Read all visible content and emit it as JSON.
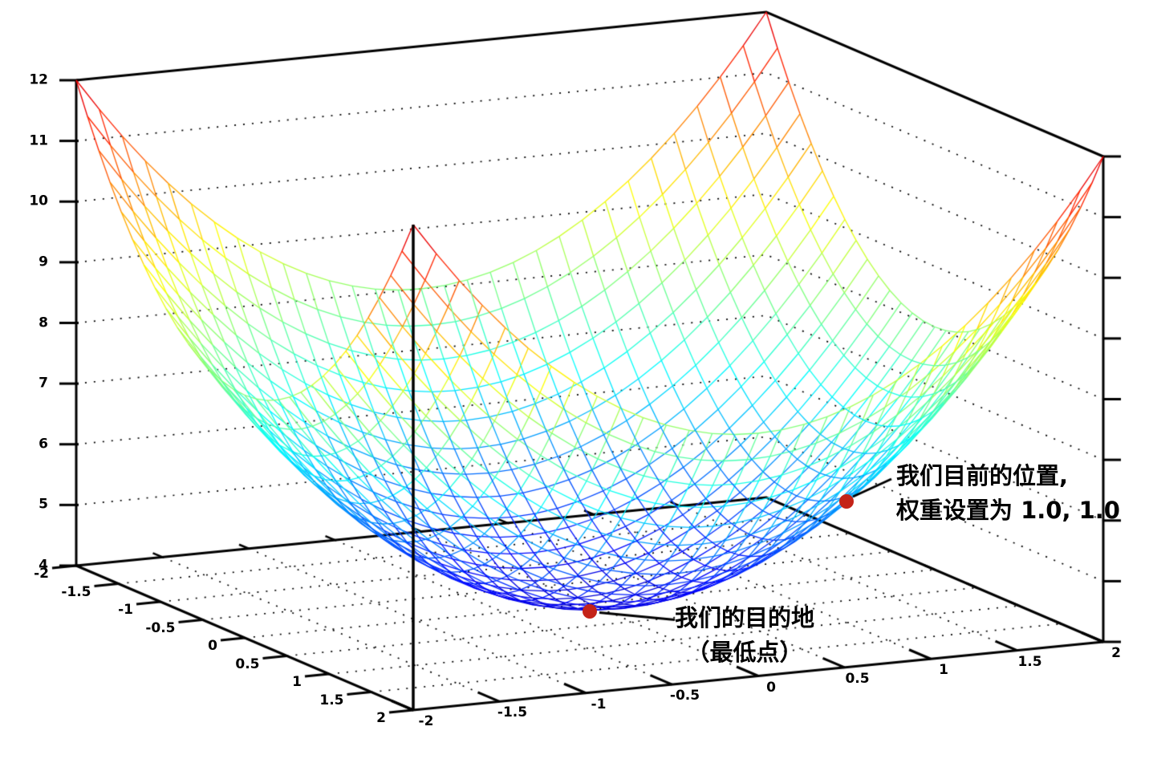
{
  "figure": {
    "background": "#ffffff",
    "marker_color": "#c42318",
    "annotations": [
      {
        "target": "current-position",
        "lines": [
          "我们目前的位置,",
          "权重设置为 1.0, 1.0"
        ]
      },
      {
        "target": "destination-minimum",
        "lines": [
          "我们的目的地",
          "（最低点）"
        ]
      }
    ]
  },
  "chart_data": {
    "type": "surface",
    "title": "",
    "xlabel": "",
    "ylabel": "",
    "zlabel": "",
    "function": "z = x^2 + y^2 + 4 (bowl-shaped error surface)",
    "x_range": [
      -2,
      2
    ],
    "y_range": [
      -2,
      2
    ],
    "z_range": [
      4,
      12
    ],
    "x_ticks": [
      -2,
      -1.5,
      -1,
      -0.5,
      0,
      0.5,
      1,
      1.5,
      2
    ],
    "y_ticks": [
      -2,
      -1.5,
      -1,
      -0.5,
      0,
      0.5,
      1,
      1.5,
      2
    ],
    "z_ticks": [
      4,
      5,
      6,
      7,
      8,
      9,
      10,
      11,
      12
    ],
    "grid_divisions": 30,
    "colormap": "jet (blue at z=4 through cyan, green, yellow to red at z=12)",
    "grid": "dotted gridlines on back walls at each z tick and on floor at 0.5 steps",
    "legend": "none",
    "points": [
      {
        "x": 1.0,
        "y": 1.0,
        "z": 6.0,
        "label": "我们目前的位置, 权重设置为 1.0, 1.0"
      },
      {
        "x": 0.0,
        "y": 0.0,
        "z": 4.0,
        "label": "我们的目的地（最低点）"
      }
    ]
  }
}
